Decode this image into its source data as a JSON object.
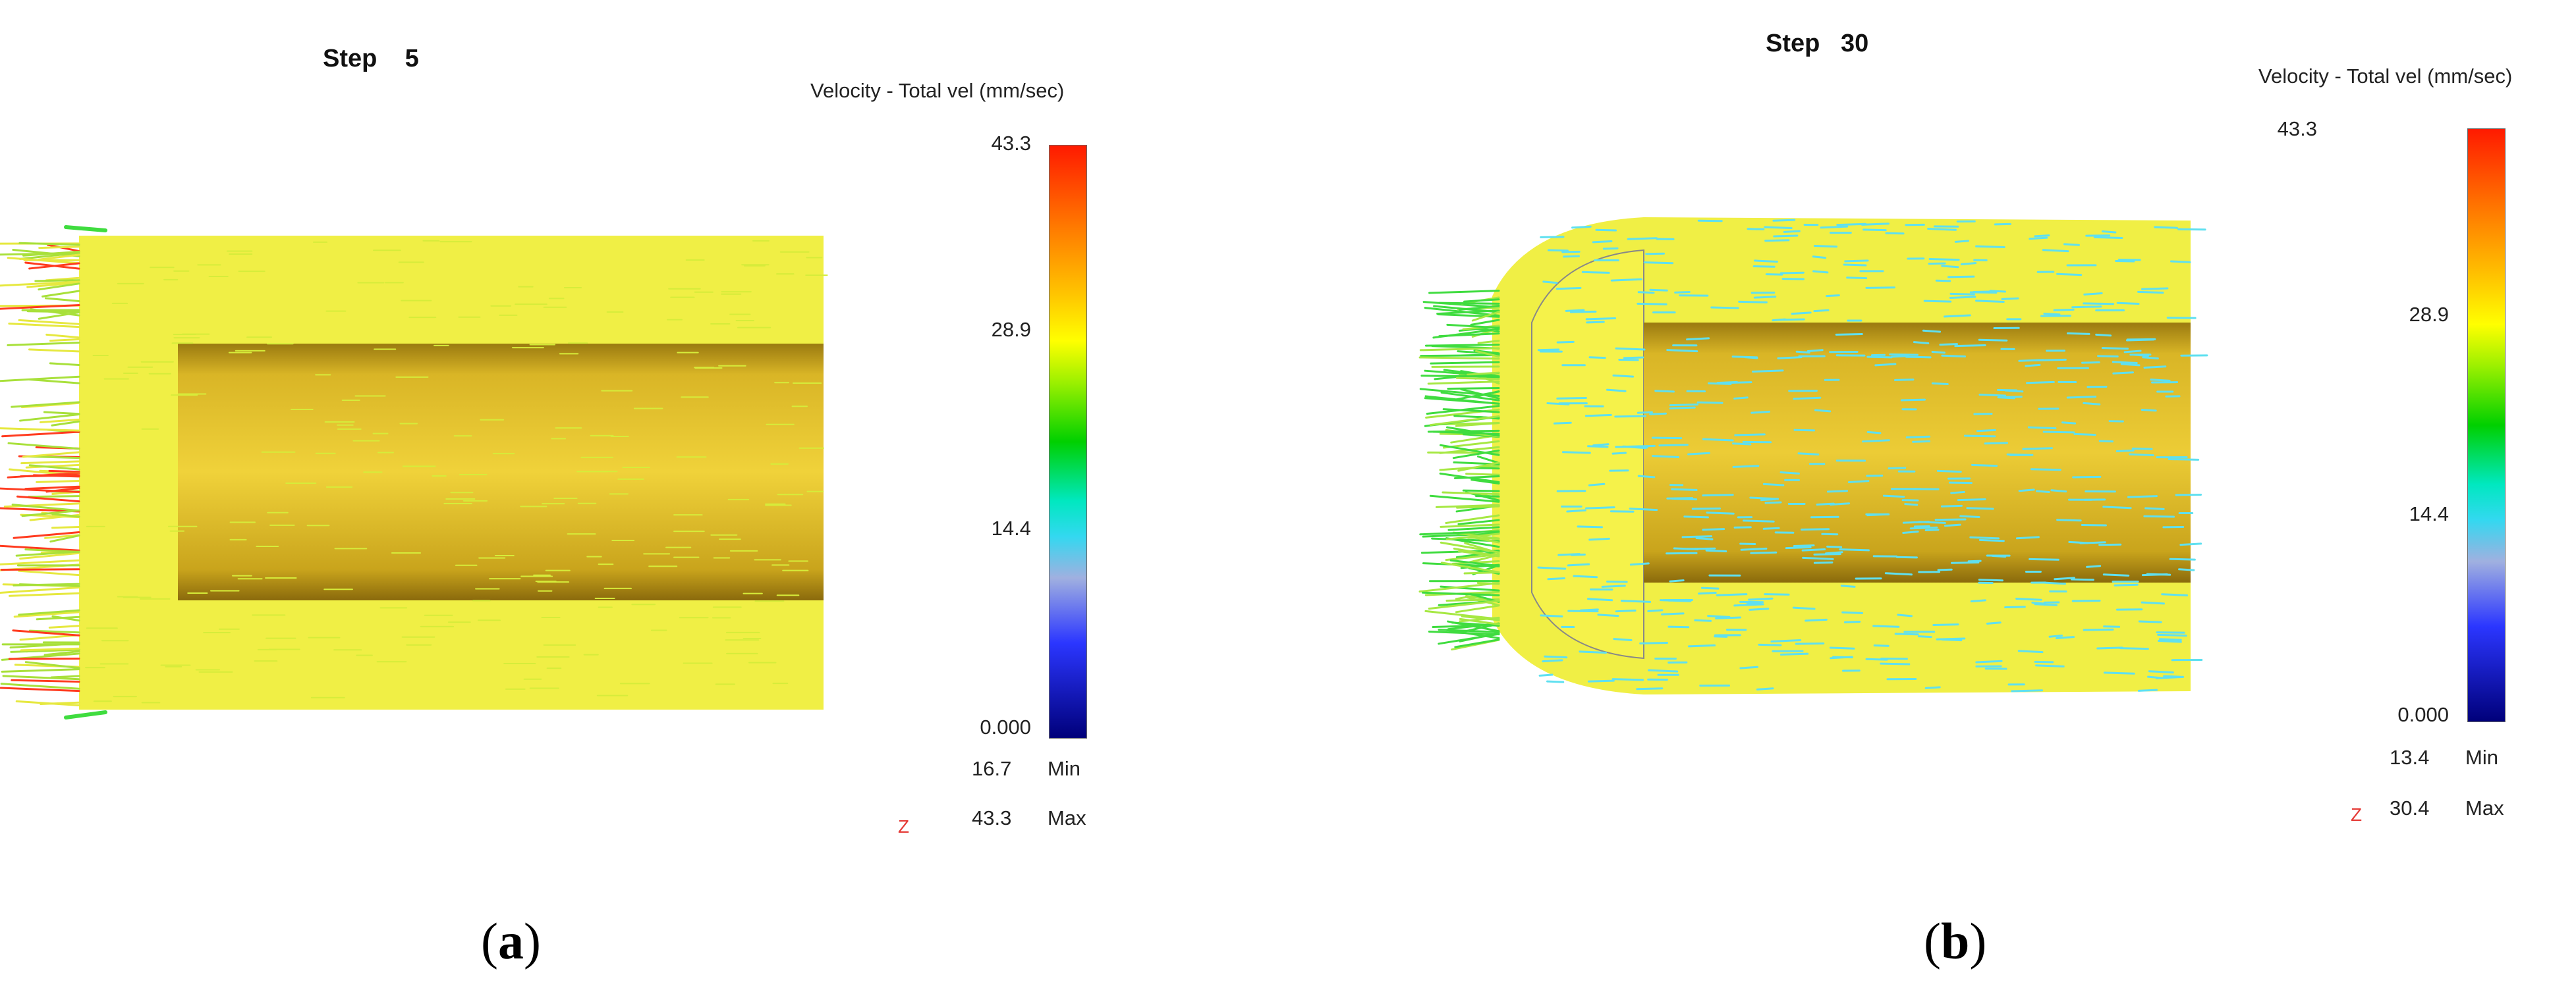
{
  "panels": [
    {
      "step_label": "Step    5",
      "legend_title": "Velocity - Total vel (mm/sec)",
      "scale": {
        "top": "43.3",
        "upper_mid": "28.9",
        "lower_mid": "14.4",
        "bottom": "0.000"
      },
      "min": {
        "value": "16.7",
        "label": "Min"
      },
      "max": {
        "value": "43.3",
        "label": "Max"
      },
      "axis_label": "Z",
      "caption": "(a)",
      "caption_letter": "a"
    },
    {
      "step_label": "Step   30",
      "legend_title": "Velocity - Total vel (mm/sec)",
      "scale": {
        "top": "43.3",
        "upper_mid": "28.9",
        "lower_mid": "14.4",
        "bottom": "0.000"
      },
      "min": {
        "value": "13.4",
        "label": "Min"
      },
      "max": {
        "value": "30.4",
        "label": "Max"
      },
      "axis_label": "Z",
      "caption": "(b)",
      "caption_letter": "b"
    }
  ],
  "colors": {
    "field_yellow": "#f2f240",
    "cavity_gold": "#d7b320",
    "vector_cyan": "#5fe0f0",
    "vector_green": "#3fdc3f",
    "vector_red": "#ff3b1f"
  }
}
